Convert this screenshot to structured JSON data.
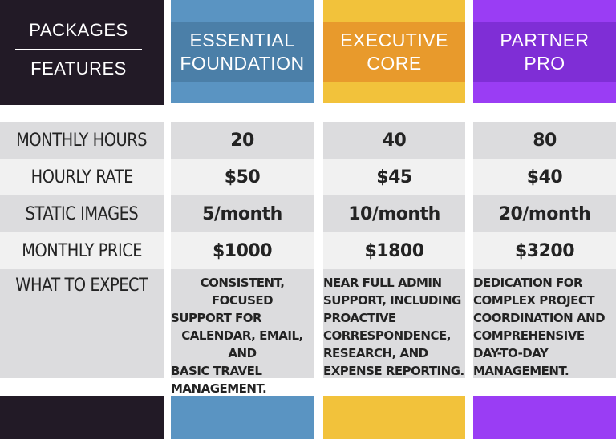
{
  "corner": {
    "top": "PACKAGES",
    "bottom": "FEATURES"
  },
  "packages": [
    {
      "line1": "ESSENTIAL",
      "line2": "FOUNDATION",
      "color": "#5a94c2",
      "band": "#4b7fa8"
    },
    {
      "line1": "EXECUTIVE",
      "line2": "CORE",
      "color": "#f2c23b",
      "band": "#e89a2c"
    },
    {
      "line1": "PARTNER",
      "line2": "PRO",
      "color": "#9a3df4",
      "band": "#7f2ed6"
    }
  ],
  "rows": [
    {
      "label": "MONTHLY HOURS",
      "values": [
        "20",
        "40",
        "80"
      ]
    },
    {
      "label": "HOURLY RATE",
      "values": [
        "$50",
        "$45",
        "$40"
      ]
    },
    {
      "label": "STATIC IMAGES",
      "values": [
        "5/month",
        "10/month",
        "20/month"
      ]
    },
    {
      "label": "MONTHLY PRICE",
      "values": [
        "$1000",
        "$1800",
        "$3200"
      ]
    }
  ],
  "expect": {
    "label": "WHAT TO EXPECT",
    "values": [
      [
        "CONSISTENT, FOCUSED",
        "SUPPORT FOR",
        "CALENDAR, EMAIL, AND",
        "BASIC TRAVEL",
        "MANAGEMENT."
      ],
      [
        "NEAR FULL ADMIN",
        "SUPPORT, INCLUDING",
        "PROACTIVE",
        "CORRESPONDENCE,",
        "RESEARCH, AND",
        "EXPENSE REPORTING."
      ],
      [
        "DEDICATION FOR",
        "COMPLEX PROJECT",
        "COORDINATION AND",
        "COMPREHENSIVE",
        "DAY-TO-DAY",
        "MANAGEMENT."
      ]
    ]
  }
}
